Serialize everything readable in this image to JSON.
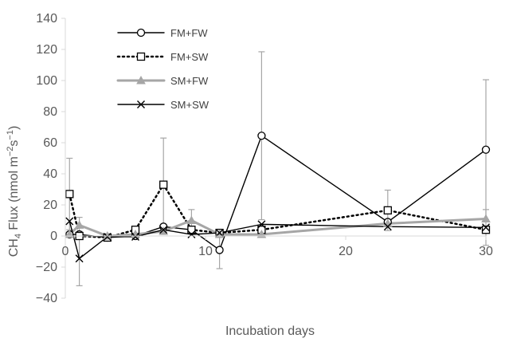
{
  "chart_data": {
    "type": "line",
    "title": "",
    "xlabel": "Incubation days",
    "ylabel": {
      "prefix": "CH",
      "sub": "4",
      "middle": "  Flux (nmol m",
      "exp1": "−2",
      "s": "s",
      "exp2": "−1",
      "suffix": ")"
    },
    "xlim": [
      0,
      30
    ],
    "ylim": [
      -40,
      140
    ],
    "x_ticks": [
      0,
      10,
      20,
      30
    ],
    "x_tick_labels": [
      "0",
      "10",
      "20",
      "30"
    ],
    "y_ticks": [
      -40,
      -20,
      0,
      20,
      40,
      60,
      80,
      100,
      120,
      140
    ],
    "y_tick_labels": [
      "−40",
      "−20",
      "0",
      "20",
      "40",
      "60",
      "80",
      "100",
      "120",
      "140"
    ],
    "grid": false,
    "legend_position": "top-left",
    "series": [
      {
        "name": "FM+FW",
        "color": "#000000",
        "line_style": "solid",
        "marker": "circle",
        "x": [
          0.3,
          1,
          3,
          5,
          7,
          9,
          11,
          14,
          23,
          30
        ],
        "y": [
          1,
          1,
          -1,
          0,
          6,
          4,
          -9,
          64.5,
          9,
          55.5
        ],
        "error": [
          0,
          0,
          0,
          0,
          0,
          0,
          12,
          54,
          0,
          45
        ]
      },
      {
        "name": "FM+SW",
        "color": "#000000",
        "line_style": "dotted",
        "marker": "square",
        "x": [
          0.3,
          1,
          3,
          5,
          7,
          9,
          11,
          14,
          23,
          30
        ],
        "y": [
          27,
          0,
          -1,
          4,
          33,
          4,
          2,
          4,
          16.5,
          4
        ],
        "error": [
          23,
          0,
          0,
          0,
          30,
          0,
          0,
          0,
          13,
          0
        ]
      },
      {
        "name": "SM+FW",
        "color": "#a6a6a6",
        "line_style": "solid",
        "marker": "triangle",
        "x": [
          0.3,
          1,
          3,
          5,
          7,
          9,
          11,
          14,
          23,
          30
        ],
        "y": [
          1,
          7,
          0,
          1,
          3,
          10,
          1,
          1,
          8,
          11
        ],
        "error": [
          0,
          5,
          0,
          0,
          0,
          7,
          0,
          0,
          0,
          0
        ]
      },
      {
        "name": "SM+SW",
        "color": "#000000",
        "line_style": "solid",
        "marker": "x",
        "x": [
          0.3,
          1,
          3,
          5,
          7,
          9,
          11,
          14,
          23,
          30
        ],
        "y": [
          9.5,
          -14.5,
          -0.5,
          -0.5,
          4,
          1,
          2,
          7.5,
          6,
          5.5
        ],
        "error": [
          0,
          17.5,
          0,
          0,
          0,
          0,
          0,
          0,
          0,
          11.5
        ]
      }
    ]
  }
}
